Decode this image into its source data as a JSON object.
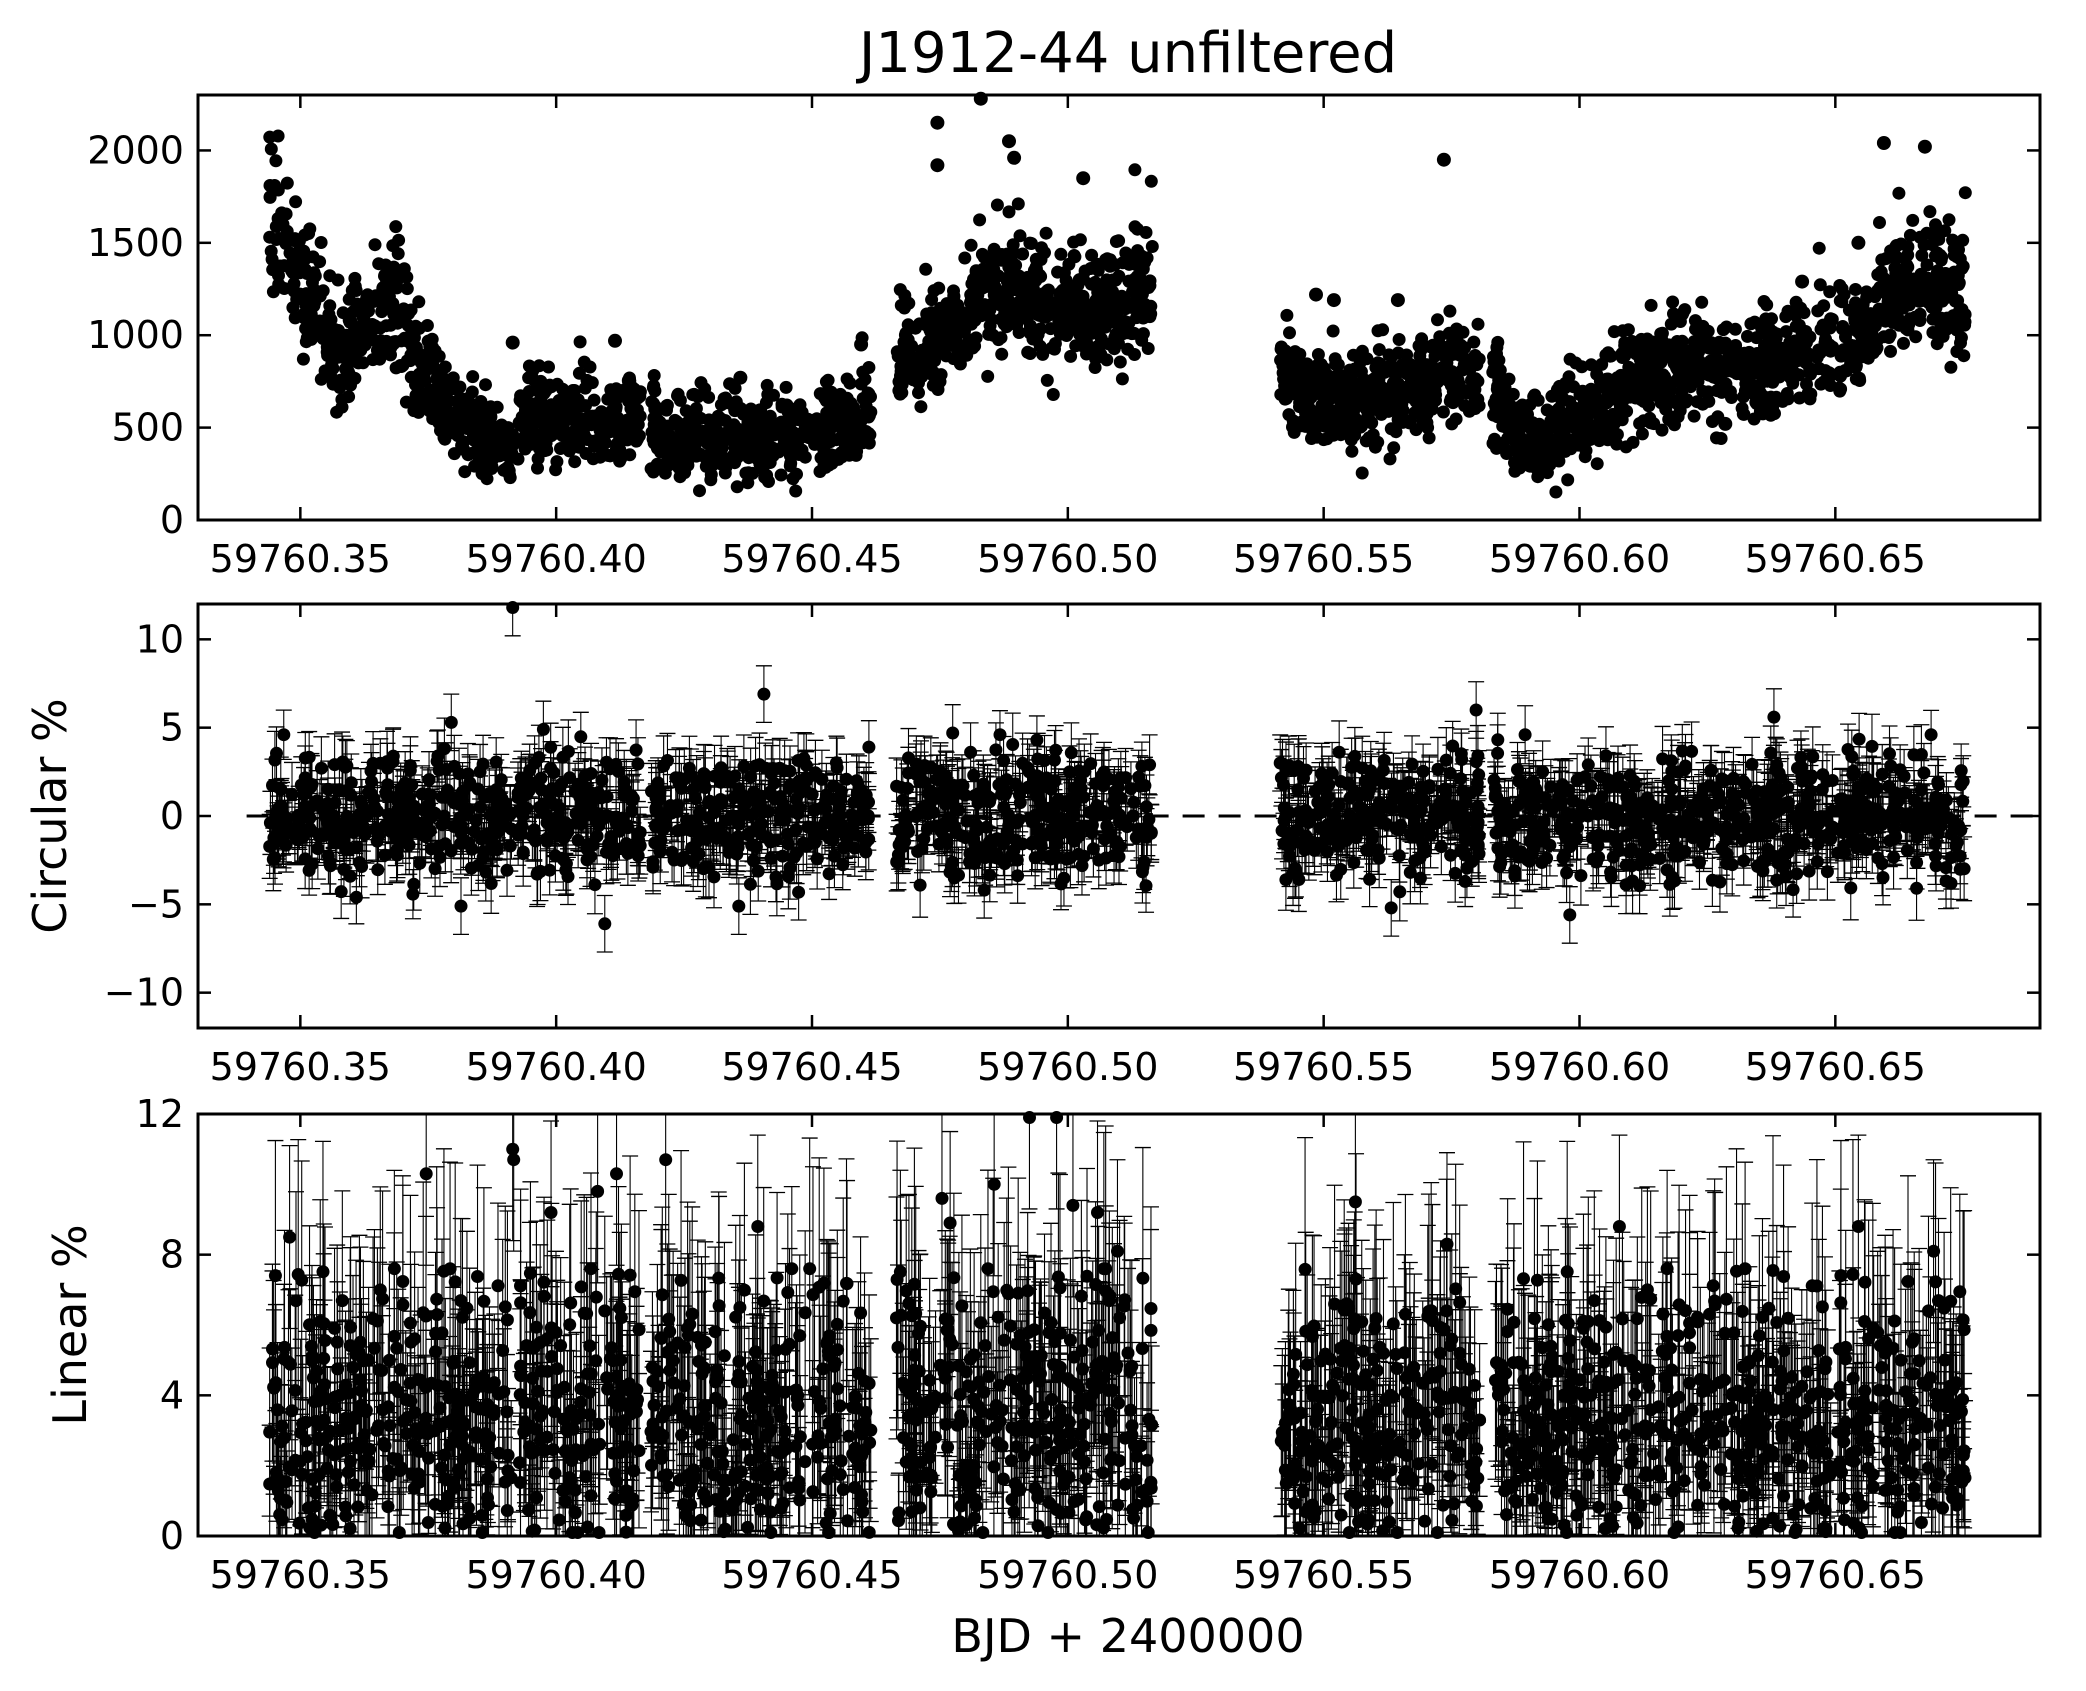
{
  "title": "J1912-44 unfiltered",
  "xlabel": "BJD + 2400000",
  "chart_data": [
    {
      "type": "scatter",
      "panel": "flux",
      "title": "J1912-44 unfiltered",
      "xlabel": "",
      "ylabel": "",
      "xlim": [
        59760.33,
        59760.69
      ],
      "ylim": [
        0,
        2300
      ],
      "xticks": [
        59760.35,
        59760.4,
        59760.45,
        59760.5,
        59760.55,
        59760.6,
        59760.65
      ],
      "xtick_labels": [
        "59760.35",
        "59760.40",
        "59760.45",
        "59760.50",
        "59760.55",
        "59760.60",
        "59760.65"
      ],
      "yticks": [
        0,
        500,
        1000,
        1500,
        2000
      ],
      "ytick_labels": [
        "0",
        "500",
        "1000",
        "1500",
        "2000"
      ],
      "grid": false,
      "trend": [
        [
          59760.345,
          1650
        ],
        [
          59760.35,
          1300
        ],
        [
          59760.355,
          1050
        ],
        [
          59760.358,
          800
        ],
        [
          59760.362,
          1020
        ],
        [
          59760.366,
          1180
        ],
        [
          59760.369,
          1150
        ],
        [
          59760.372,
          900
        ],
        [
          59760.376,
          700
        ],
        [
          59760.38,
          560
        ],
        [
          59760.386,
          470
        ],
        [
          59760.391,
          360
        ],
        [
          59760.394,
          580
        ],
        [
          59760.4,
          560
        ],
        [
          59760.405,
          540
        ],
        [
          59760.41,
          530
        ],
        [
          59760.416,
          560
        ],
        [
          59760.419,
          500
        ],
        [
          59760.425,
          430
        ],
        [
          59760.435,
          420
        ],
        [
          59760.445,
          450
        ],
        [
          59760.455,
          500
        ],
        [
          59760.462,
          600
        ],
        [
          59760.466,
          950
        ],
        [
          59760.472,
          900
        ],
        [
          59760.478,
          1080
        ],
        [
          59760.485,
          1300
        ],
        [
          59760.493,
          1200
        ],
        [
          59760.5,
          1180
        ],
        [
          59760.508,
          1130
        ],
        [
          59760.516,
          1250
        ],
        [
          59760.545,
          700
        ],
        [
          59760.555,
          650
        ],
        [
          59760.565,
          640
        ],
        [
          59760.57,
          720
        ],
        [
          59760.575,
          800
        ],
        [
          59760.58,
          760
        ],
        [
          59760.585,
          620
        ],
        [
          59760.588,
          450
        ],
        [
          59760.595,
          430
        ],
        [
          59760.6,
          560
        ],
        [
          59760.605,
          620
        ],
        [
          59760.61,
          700
        ],
        [
          59760.615,
          800
        ],
        [
          59760.625,
          830
        ],
        [
          59760.635,
          820
        ],
        [
          59760.642,
          880
        ],
        [
          59760.65,
          950
        ],
        [
          59760.655,
          1000
        ],
        [
          59760.66,
          1300
        ],
        [
          59760.665,
          1250
        ],
        [
          59760.67,
          1300
        ],
        [
          59760.675,
          1200
        ]
      ],
      "scatter_amplitude": 120,
      "outliers": [
        [
          59760.4745,
          2150
        ],
        [
          59760.4745,
          1920
        ],
        [
          59760.483,
          2280
        ],
        [
          59760.4885,
          2050
        ],
        [
          59760.4895,
          1960
        ],
        [
          59760.503,
          1850
        ],
        [
          59760.5735,
          1950
        ],
        [
          59760.6595,
          2040
        ],
        [
          59760.6675,
          2020
        ],
        [
          59760.6545,
          1500
        ],
        [
          59760.6435,
          1290
        ],
        [
          59760.5485,
          1220
        ],
        [
          59760.552,
          1190
        ],
        [
          59760.5645,
          1190
        ],
        [
          59760.3915,
          960
        ],
        [
          59760.4115,
          970
        ],
        [
          59760.4596,
          950
        ],
        [
          59760.436,
          770
        ],
        [
          59760.6285,
          520
        ]
      ]
    },
    {
      "type": "scatter",
      "panel": "circular",
      "xlabel": "",
      "ylabel": "Circular %",
      "xlim": [
        59760.33,
        59760.69
      ],
      "ylim": [
        -12,
        12
      ],
      "xticks": [
        59760.35,
        59760.4,
        59760.45,
        59760.5,
        59760.55,
        59760.6,
        59760.65
      ],
      "xtick_labels": [
        "59760.35",
        "59760.40",
        "59760.45",
        "59760.50",
        "59760.55",
        "59760.60",
        "59760.65"
      ],
      "yticks": [
        -10,
        -5,
        0,
        5,
        10
      ],
      "ytick_labels": [
        "−10",
        "−5",
        "0",
        "5",
        "10"
      ],
      "reference_line_y": 0,
      "grid": false,
      "mean": 0,
      "scatter_sigma": 1.7,
      "error_bar": 1.6,
      "outliers": [
        [
          59760.3915,
          11.8
        ],
        [
          59760.4406,
          6.9
        ],
        [
          59760.5798,
          6.0
        ],
        [
          59760.638,
          5.6
        ],
        [
          59760.3795,
          5.3
        ],
        [
          59760.3975,
          4.9
        ],
        [
          59760.4095,
          -6.1
        ],
        [
          59760.4357,
          -5.1
        ],
        [
          59760.5981,
          -5.6
        ],
        [
          59760.5632,
          -5.2
        ],
        [
          59760.3814,
          -5.1
        ],
        [
          59760.4775,
          4.7
        ]
      ]
    },
    {
      "type": "scatter",
      "panel": "linear",
      "xlabel": "BJD + 2400000",
      "ylabel": "Linear %",
      "xlim": [
        59760.33,
        59760.69
      ],
      "ylim": [
        0,
        12
      ],
      "xticks": [
        59760.35,
        59760.4,
        59760.45,
        59760.5,
        59760.55,
        59760.6,
        59760.65
      ],
      "xtick_labels": [
        "59760.35",
        "59760.40",
        "59760.45",
        "59760.50",
        "59760.55",
        "59760.60",
        "59760.65"
      ],
      "yticks": [
        0,
        4,
        8,
        12
      ],
      "ytick_labels": [
        "0",
        "4",
        "8",
        "12"
      ],
      "grid": false,
      "mean": 3.2,
      "error_bar": 2.0,
      "outliers": [
        [
          59760.4925,
          11.9
        ],
        [
          59760.4978,
          11.9
        ],
        [
          59760.3915,
          11.0
        ],
        [
          59760.3917,
          10.7
        ],
        [
          59760.3746,
          10.3
        ],
        [
          59760.4118,
          10.3
        ],
        [
          59760.4214,
          10.7
        ],
        [
          59760.4754,
          9.6
        ],
        [
          59760.4856,
          10.0
        ],
        [
          59760.501,
          9.4
        ],
        [
          59760.5058,
          9.2
        ],
        [
          59760.5562,
          9.5
        ],
        [
          59760.4081,
          9.8
        ],
        [
          59760.399,
          9.2
        ],
        [
          59760.3479,
          8.5
        ],
        [
          59760.477,
          8.9
        ],
        [
          59760.6078,
          8.8
        ],
        [
          59760.6545,
          8.8
        ],
        [
          59760.6692,
          8.1
        ],
        [
          59760.4394,
          8.8
        ],
        [
          59760.5097,
          8.1
        ],
        [
          59760.5741,
          8.3
        ]
      ]
    }
  ],
  "observing_segments": [
    [
      59760.344,
      59760.3915
    ],
    [
      59760.3925,
      59760.4165
    ],
    [
      59760.4185,
      59760.4615
    ],
    [
      59760.4665,
      59760.5165
    ],
    [
      59760.5415,
      59760.5805
    ],
    [
      59760.583,
      59760.6495
    ],
    [
      59760.6505,
      59760.6755
    ]
  ]
}
